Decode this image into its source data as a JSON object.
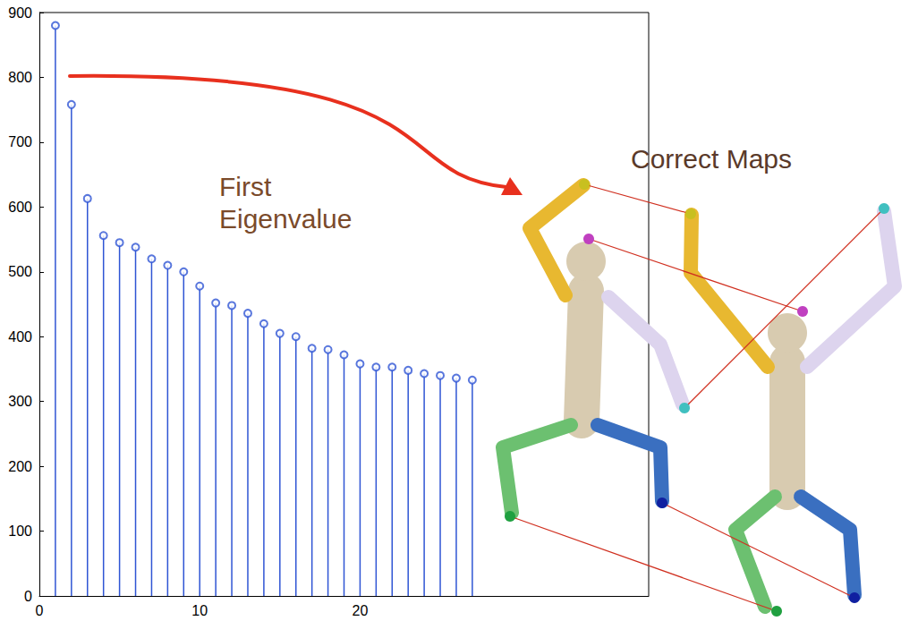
{
  "chart_data": {
    "type": "stem",
    "x": [
      1,
      2,
      3,
      4,
      5,
      6,
      7,
      8,
      9,
      10,
      11,
      12,
      13,
      14,
      15,
      16,
      17,
      18,
      19,
      20,
      21,
      22,
      23,
      24,
      25,
      26,
      27
    ],
    "values": [
      880,
      758,
      613,
      556,
      545,
      538,
      520,
      510,
      500,
      478,
      452,
      448,
      436,
      420,
      405,
      400,
      382,
      380,
      372,
      358,
      353,
      353,
      348,
      343,
      340,
      336,
      333
    ],
    "color": "#2f55d4",
    "marker": "circle",
    "xlim": [
      0,
      38
    ],
    "xticks": [
      0,
      10,
      20
    ],
    "ylim": [
      0,
      900
    ],
    "yticks": [
      0,
      100,
      200,
      300,
      400,
      500,
      600,
      700,
      800,
      900
    ],
    "grid": false,
    "annotations": [
      {
        "text": "First Eigenvalue"
      },
      {
        "text": "Correct Maps"
      }
    ]
  }
}
